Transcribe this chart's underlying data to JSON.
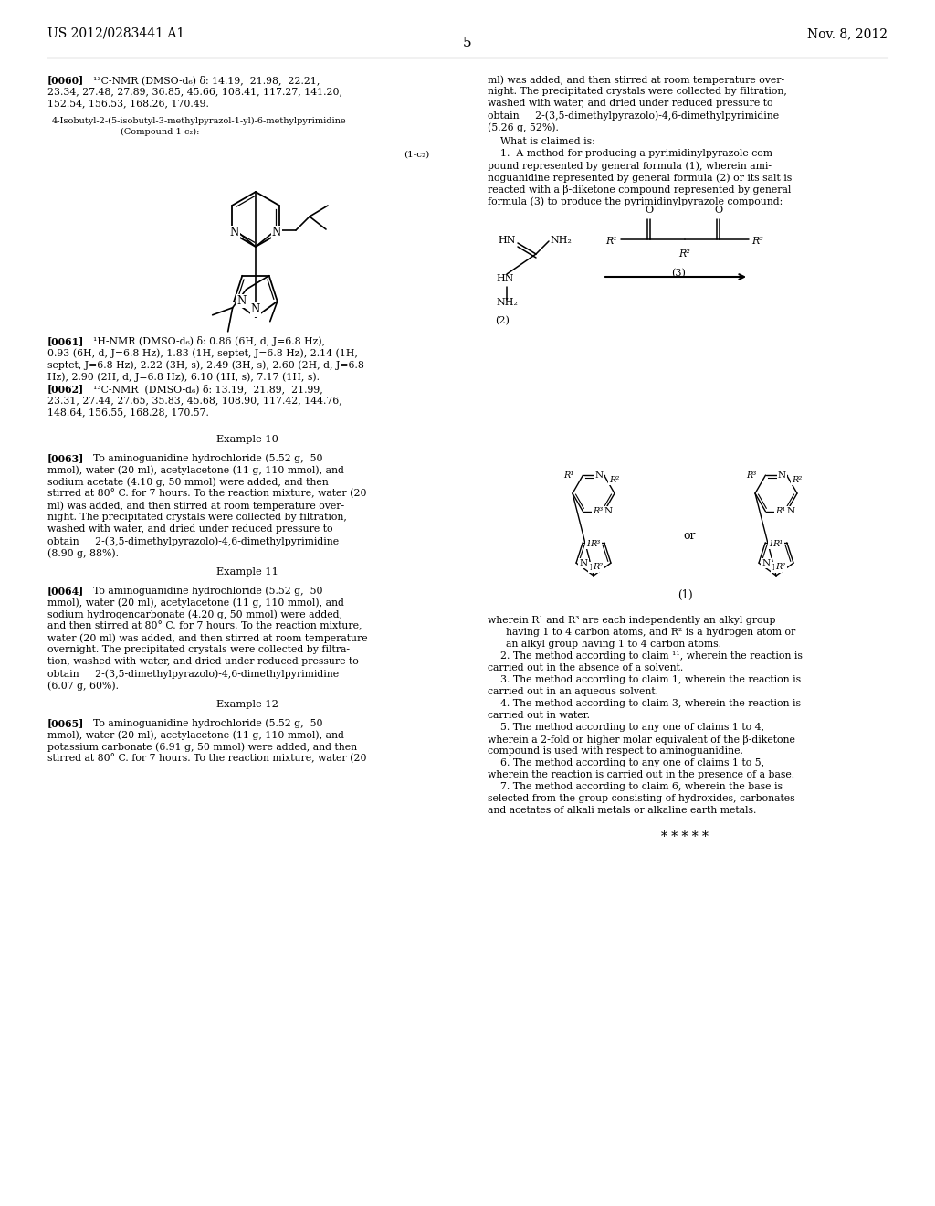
{
  "background_color": "#ffffff",
  "header_left": "US 2012/0283441 A1",
  "header_right": "Nov. 8, 2012",
  "page_number": "5"
}
